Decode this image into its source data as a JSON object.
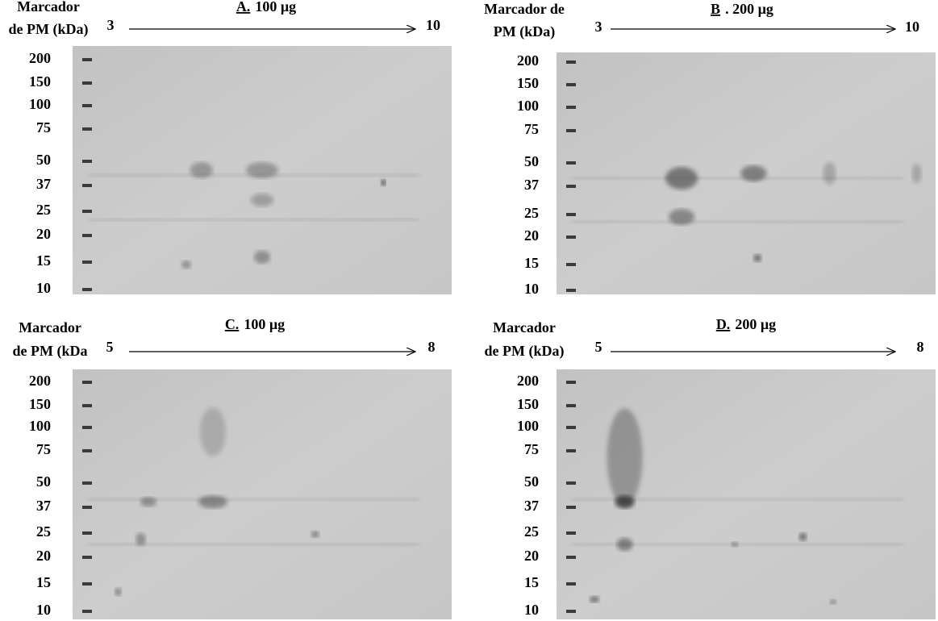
{
  "panels": [
    {
      "marker_label": [
        "Marcador",
        "de PM (kDa)"
      ],
      "title": {
        "letter": "A.",
        "text": "100 µg"
      },
      "ph_start": 3,
      "ph_end": 10,
      "mw_labels": [
        200,
        150,
        100,
        75,
        50,
        37,
        25,
        20,
        15,
        10
      ]
    },
    {
      "marker_label": [
        "Marcador de",
        "PM (kDa)"
      ],
      "title": {
        "letter": "B",
        "text": ". 200 µg"
      },
      "ph_start": 3,
      "ph_end": 10,
      "mw_labels": [
        200,
        150,
        100,
        75,
        50,
        37,
        25,
        20,
        15,
        10
      ]
    },
    {
      "marker_label": [
        "Marcador",
        "de PM (kDa"
      ],
      "title": {
        "letter": "C.",
        "text": "100 µg"
      },
      "ph_start": 5,
      "ph_end": 8,
      "mw_labels": [
        200,
        150,
        100,
        75,
        50,
        37,
        25,
        20,
        15,
        10
      ]
    },
    {
      "marker_label": [
        "Marcador",
        "de PM (kDa)"
      ],
      "title": {
        "letter": "D.",
        "text": "200 µg"
      },
      "ph_start": 5,
      "ph_end": 8,
      "mw_labels": [
        200,
        150,
        100,
        75,
        50,
        37,
        25,
        20,
        15,
        10
      ]
    }
  ]
}
